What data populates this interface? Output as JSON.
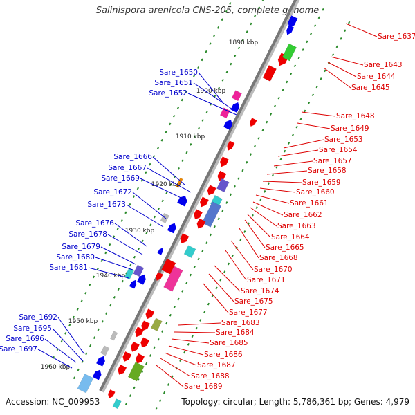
{
  "title": "Salinispora arenicola CNS-205, complete genome",
  "footer": {
    "accession": "Accession: NC_009953",
    "summary": "Topology: circular; Length: 5,786,361 bp; Genes: 4,979"
  },
  "colors": {
    "left_label": "#0000cc",
    "right_label": "#dd0000",
    "backbone": "#777777",
    "tick": "#2a8a2a"
  },
  "scale_labels": [
    "1890 kbp",
    "1900 kbp",
    "1910 kbp",
    "1920 kbp",
    "1930 kbp",
    "1940 kbp",
    "1950 kbp",
    "1960 kbp"
  ],
  "left_genes": [
    "Sare_1650",
    "Sare_1651",
    "Sare_1652",
    "Sare_1666",
    "Sare_1667",
    "Sare_1669",
    "Sare_1672",
    "Sare_1673",
    "Sare_1676",
    "Sare_1678",
    "Sare_1679",
    "Sare_1680",
    "Sare_1681",
    "Sare_1692",
    "Sare_1695",
    "Sare_1696",
    "Sare_1697"
  ],
  "right_genes": [
    "Sare_1637",
    "Sare_1643",
    "Sare_1644",
    "Sare_1645",
    "Sare_1648",
    "Sare_1649",
    "Sare_1653",
    "Sare_1654",
    "Sare_1657",
    "Sare_1658",
    "Sare_1659",
    "Sare_1660",
    "Sare_1661",
    "Sare_1662",
    "Sare_1663",
    "Sare_1664",
    "Sare_1665",
    "Sare_1668",
    "Sare_1670",
    "Sare_1671",
    "Sare_1674",
    "Sare_1675",
    "Sare_1677",
    "Sare_1683",
    "Sare_1684",
    "Sare_1685",
    "Sare_1686",
    "Sare_1687",
    "Sare_1688",
    "Sare_1689"
  ]
}
